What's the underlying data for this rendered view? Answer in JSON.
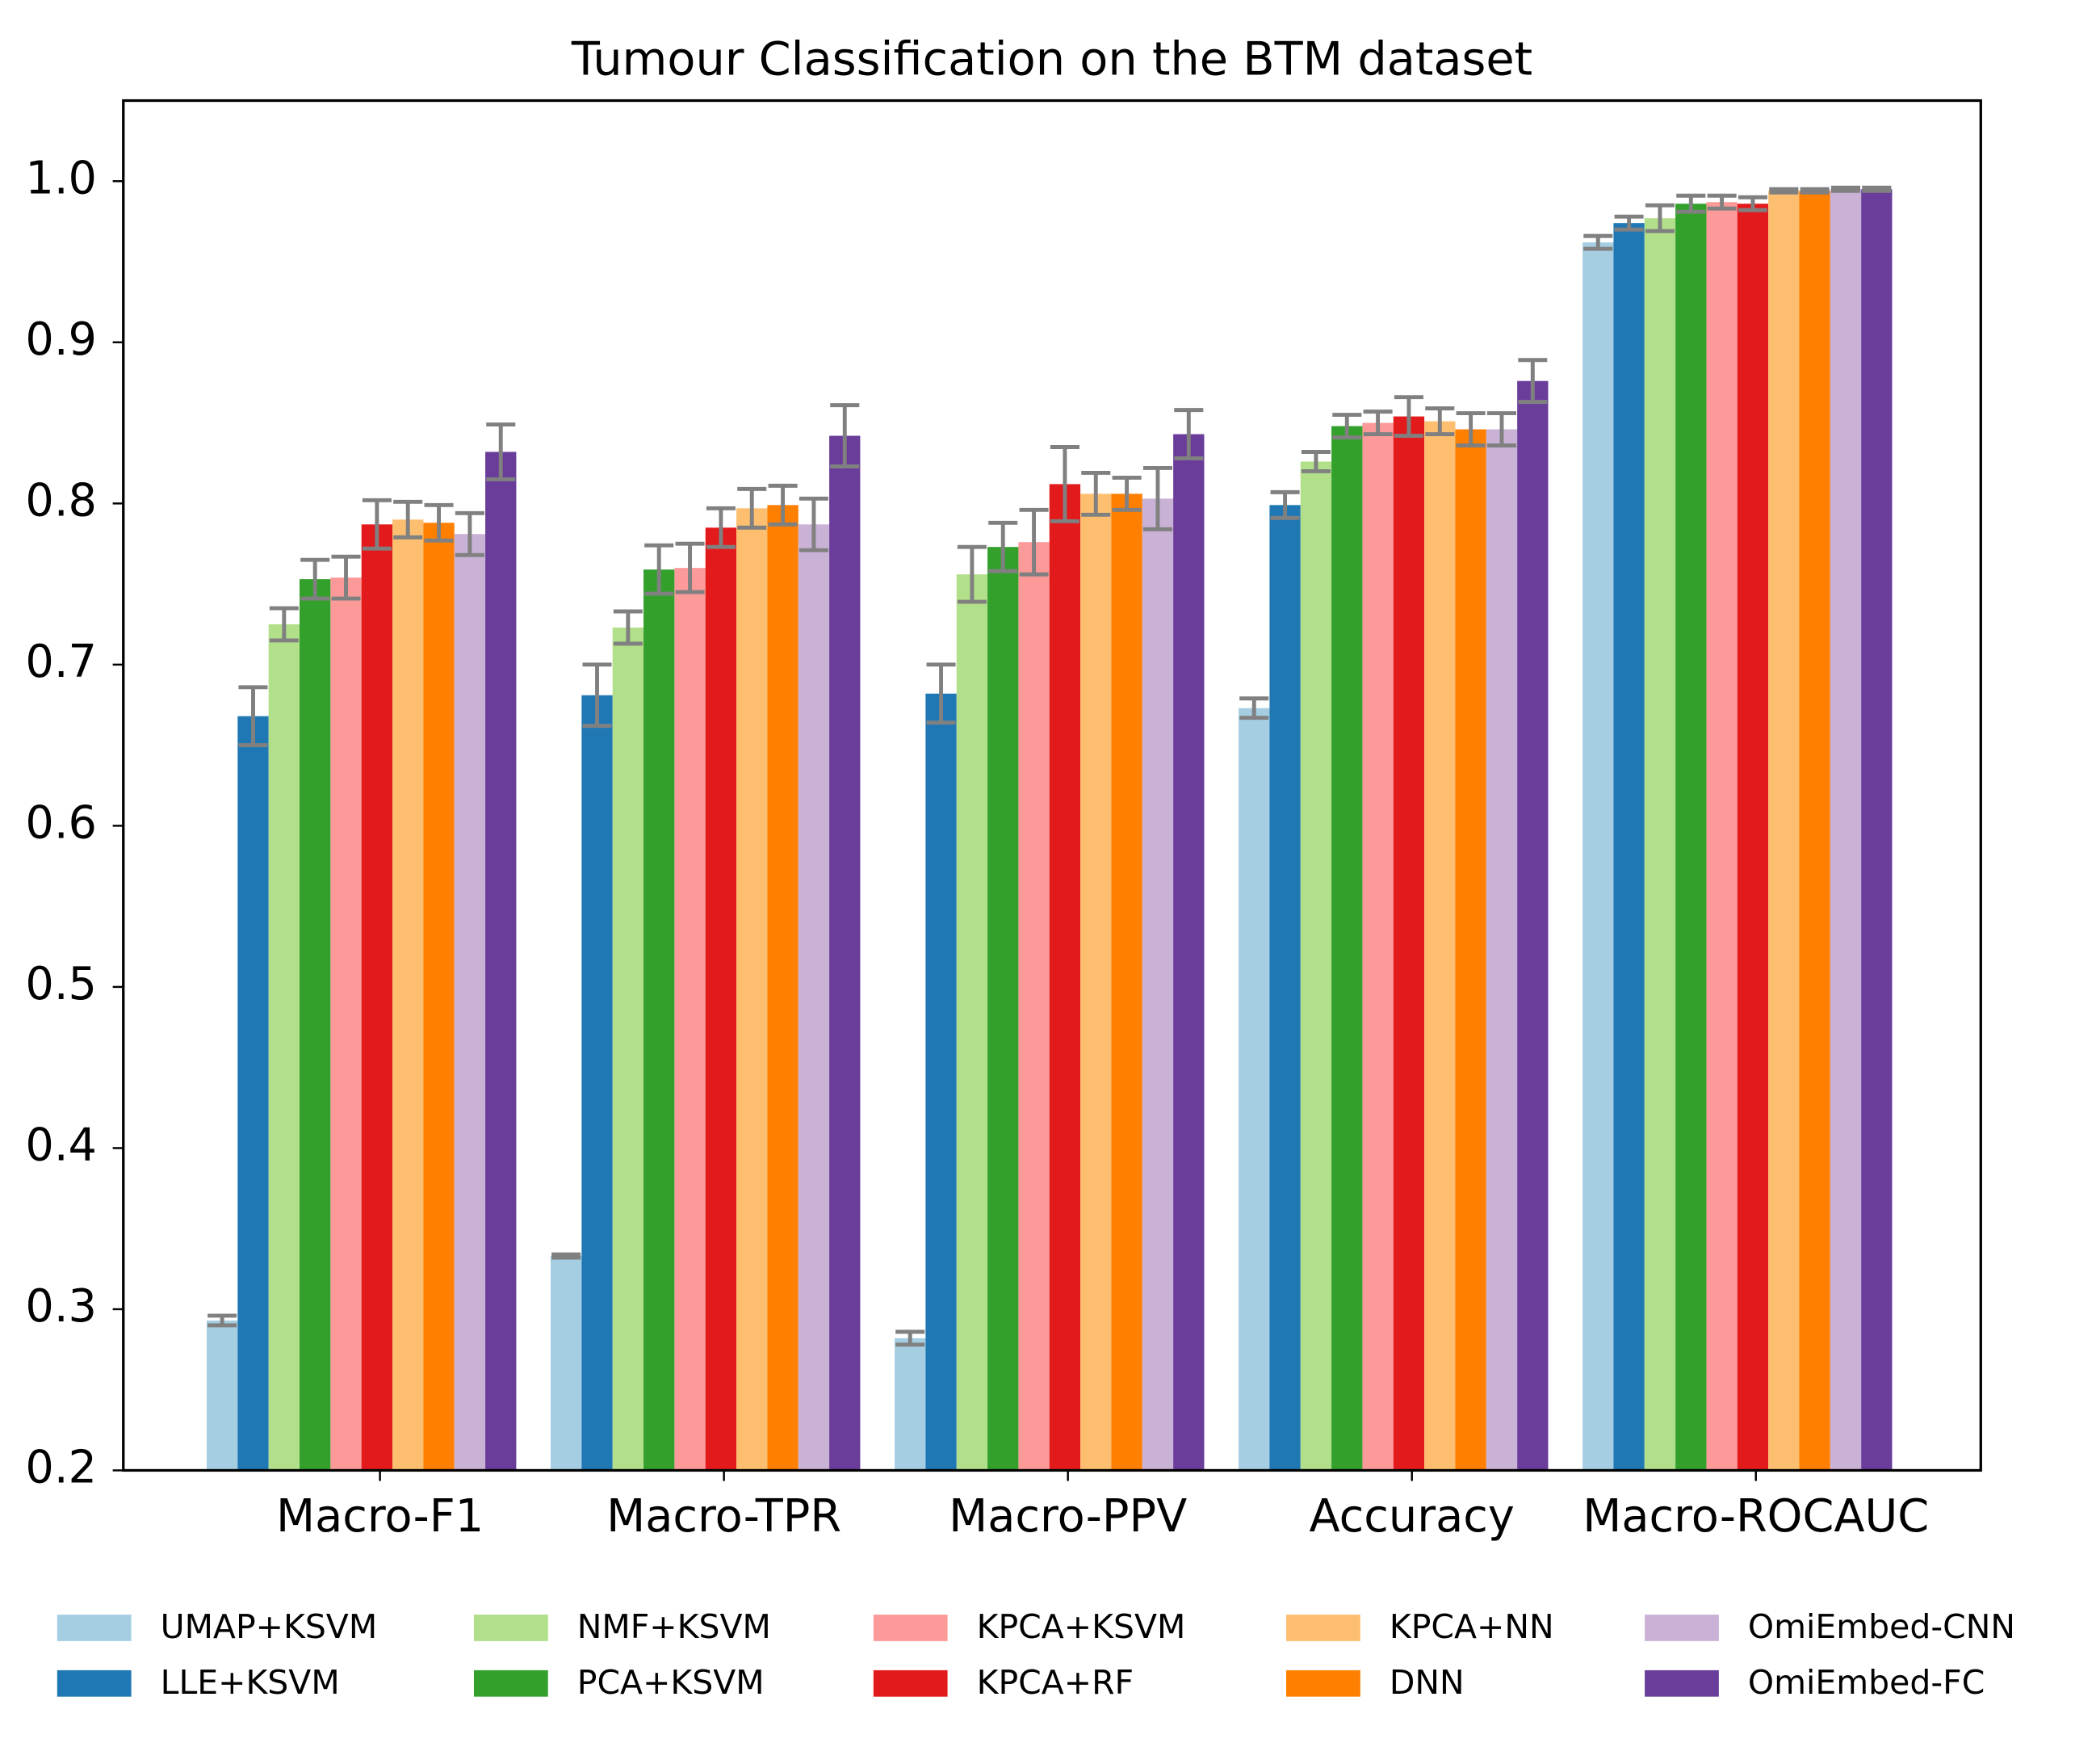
{
  "chart_data": {
    "type": "bar",
    "title": "Tumour Classification on the BTM dataset",
    "categories": [
      "Macro-F1",
      "Macro-TPR",
      "Macro-PPV",
      "Accuracy",
      "Macro-ROCAUC"
    ],
    "series": [
      {
        "name": "UMAP+KSVM",
        "color": "#a6cee3",
        "values": [
          0.293,
          0.333,
          0.282,
          0.673,
          0.962
        ],
        "errors": [
          0.003,
          0.001,
          0.004,
          0.006,
          0.004
        ]
      },
      {
        "name": "LLE+KSVM",
        "color": "#1f78b4",
        "values": [
          0.668,
          0.681,
          0.682,
          0.799,
          0.974
        ],
        "errors": [
          0.018,
          0.019,
          0.018,
          0.008,
          0.004
        ]
      },
      {
        "name": "NMF+KSVM",
        "color": "#b2df8a",
        "values": [
          0.725,
          0.723,
          0.756,
          0.826,
          0.977
        ],
        "errors": [
          0.01,
          0.01,
          0.017,
          0.006,
          0.008
        ]
      },
      {
        "name": "PCA+KSVM",
        "color": "#33a02c",
        "values": [
          0.753,
          0.759,
          0.773,
          0.848,
          0.986
        ],
        "errors": [
          0.012,
          0.015,
          0.015,
          0.007,
          0.005
        ]
      },
      {
        "name": "KPCA+KSVM",
        "color": "#fb9a99",
        "values": [
          0.754,
          0.76,
          0.776,
          0.85,
          0.987
        ],
        "errors": [
          0.013,
          0.015,
          0.02,
          0.007,
          0.004
        ]
      },
      {
        "name": "KPCA+RF",
        "color": "#e31a1c",
        "values": [
          0.787,
          0.785,
          0.812,
          0.854,
          0.986
        ],
        "errors": [
          0.015,
          0.012,
          0.023,
          0.012,
          0.004
        ]
      },
      {
        "name": "KPCA+NN",
        "color": "#fdbf6f",
        "values": [
          0.79,
          0.797,
          0.806,
          0.851,
          0.994
        ],
        "errors": [
          0.011,
          0.012,
          0.013,
          0.008,
          0.001
        ]
      },
      {
        "name": "DNN",
        "color": "#ff7f00",
        "values": [
          0.788,
          0.799,
          0.806,
          0.846,
          0.994
        ],
        "errors": [
          0.011,
          0.012,
          0.01,
          0.01,
          0.001
        ]
      },
      {
        "name": "OmiEmbed-CNN",
        "color": "#cab2d6",
        "values": [
          0.781,
          0.787,
          0.803,
          0.846,
          0.995
        ],
        "errors": [
          0.013,
          0.016,
          0.019,
          0.01,
          0.001
        ]
      },
      {
        "name": "OmiEmbed-FC",
        "color": "#6a3d9a",
        "values": [
          0.832,
          0.842,
          0.843,
          0.876,
          0.995
        ],
        "errors": [
          0.017,
          0.019,
          0.015,
          0.013,
          0.001
        ]
      }
    ],
    "error_color": "#808080",
    "ylim": [
      0.2,
      1.05
    ],
    "yticks": [
      0.2,
      0.3,
      0.4,
      0.5,
      0.6,
      0.7,
      0.8,
      0.9,
      {
        "value": 1,
        "label": "1.0"
      }
    ],
    "legend": "bottom"
  }
}
